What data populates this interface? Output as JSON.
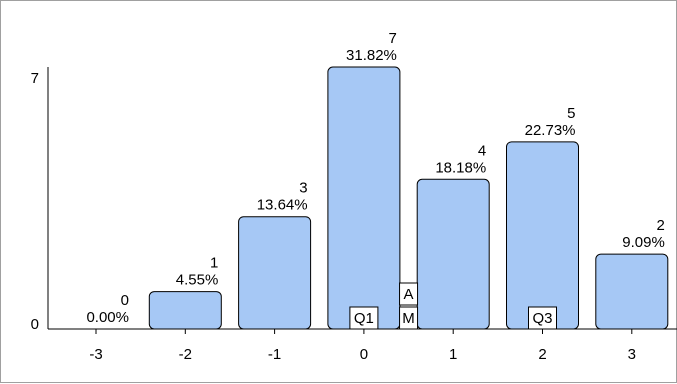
{
  "chart_data": {
    "type": "bar",
    "categories": [
      "-3",
      "-2",
      "-1",
      "0",
      "1",
      "2",
      "3"
    ],
    "values": [
      0,
      1,
      3,
      7,
      4,
      5,
      2
    ],
    "percent_labels": [
      "0.00%",
      "4.55%",
      "13.64%",
      "31.82%",
      "18.18%",
      "22.73%",
      "9.09%"
    ],
    "y_ticks": [
      "0",
      "7"
    ],
    "ylim": [
      0,
      7
    ],
    "markers": [
      {
        "label": "Q1",
        "category": "0",
        "offset": 0
      },
      {
        "label": "M",
        "category": "0",
        "offset": 0.5
      },
      {
        "label": "A",
        "category": "0",
        "offset": 0.5
      },
      {
        "label": "Q3",
        "category": "2",
        "offset": 0
      }
    ],
    "colors": {
      "bar_fill": "#a6c8f5",
      "bar_stroke": "#000000"
    },
    "grid": false,
    "title": "",
    "xlabel": "",
    "ylabel": ""
  }
}
